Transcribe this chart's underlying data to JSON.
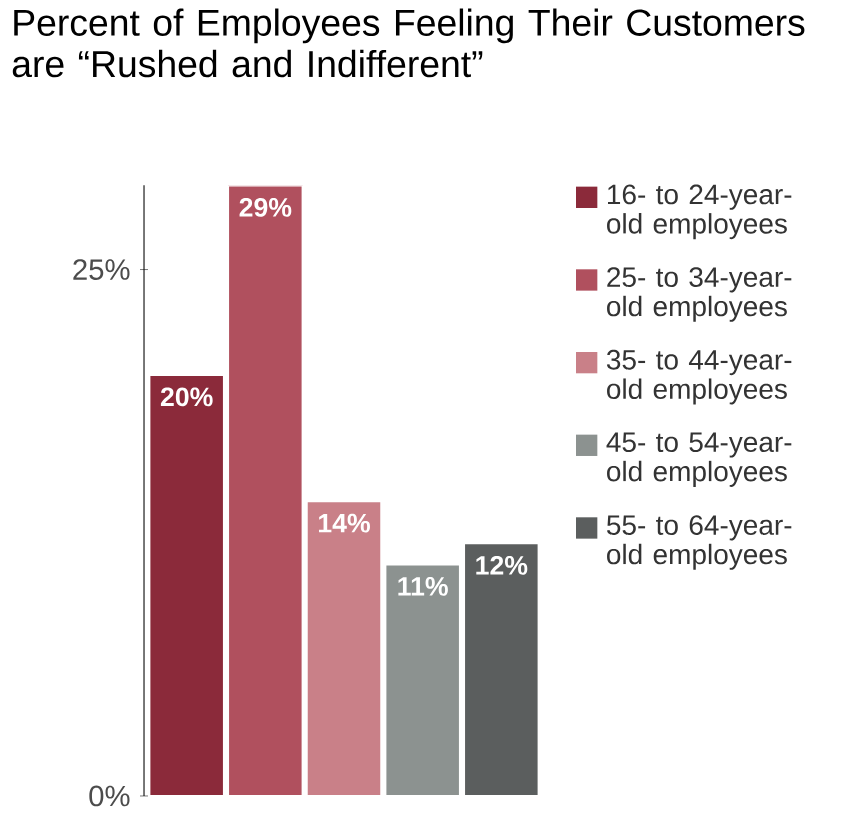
{
  "chart_data": {
    "type": "bar",
    "title": "Percent of Employees Feeling Their Customers are “Rushed and Indifferent”",
    "categories": [
      null
    ],
    "series": [
      {
        "name": "16- to 24-year-old employees",
        "color": "#8b2a3a",
        "values": [
          20
        ],
        "value_labels": [
          "20%"
        ]
      },
      {
        "name": "25- to 34-year-old employees",
        "color": "#b0505e",
        "values": [
          29
        ],
        "value_labels": [
          "29%"
        ]
      },
      {
        "name": "35- to 44-year-old employees",
        "color": "#c98088",
        "values": [
          14
        ],
        "value_labels": [
          "14%"
        ]
      },
      {
        "name": "45- to 54-year-old employees",
        "color": "#8c9290",
        "values": [
          11
        ],
        "value_labels": [
          "11%"
        ]
      },
      {
        "name": "55- to 64-year-old employees",
        "color": "#5b5e5e",
        "values": [
          12
        ],
        "value_labels": [
          "12%"
        ]
      }
    ],
    "ylim": [
      0,
      29
    ],
    "yticks": [
      {
        "value": 0,
        "label": "0%"
      },
      {
        "value": 25,
        "label": "25%"
      }
    ],
    "grid": false,
    "legend": "right"
  }
}
